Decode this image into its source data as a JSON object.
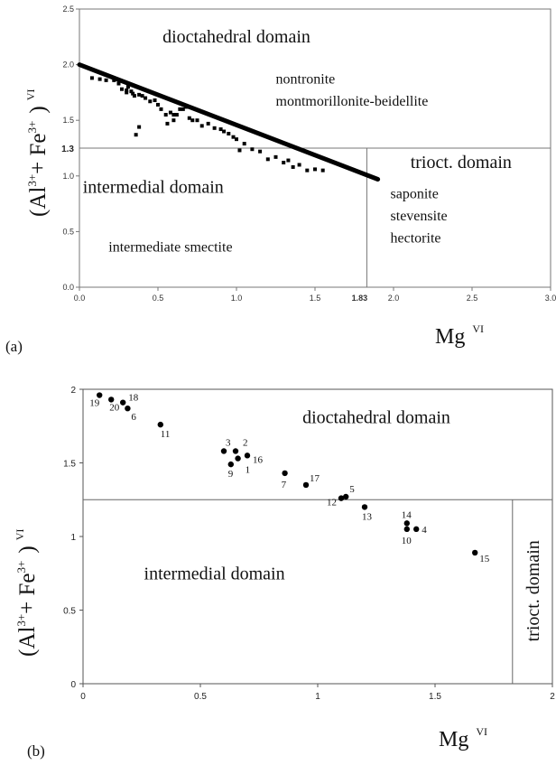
{
  "chart_data": [
    {
      "panel_label": "(a)",
      "type": "scatter",
      "xlabel": "Mg",
      "xlabel_sup": "VI",
      "ylabel_parts": {
        "open": "(Al",
        "al_sup": "3+",
        "plus": "+ Fe",
        "fe_sup": "3+",
        "close": ")",
        "sup": "VI"
      },
      "xlim": [
        0,
        3
      ],
      "ylim": [
        0,
        2.5
      ],
      "x_ticks": [
        "0.0",
        "0.5",
        "1.0",
        "1.5",
        "2.0",
        "2.5",
        "3.0"
      ],
      "y_ticks": [
        "0.0",
        "0.5",
        "1.0",
        "1.5",
        "2.0",
        "2.5"
      ],
      "extra_x_tick": {
        "value": 1.83,
        "label": "1.83"
      },
      "extra_y_tick": {
        "value": 1.25,
        "label": "1.3"
      },
      "boundaries": {
        "y": 1.25,
        "x": 1.83
      },
      "regions": [
        {
          "label": "dioctahedral domain",
          "x": 1.0,
          "y": 2.2
        },
        {
          "label": "intermedial domain",
          "x": 0.47,
          "y": 0.85
        },
        {
          "label": "trioct. domain",
          "x": 2.43,
          "y": 1.07
        }
      ],
      "mineral_labels": [
        {
          "text": "nontronite",
          "x": 1.25,
          "y": 1.83
        },
        {
          "text": "montmorillonite-beidellite",
          "x": 1.25,
          "y": 1.63
        },
        {
          "text": "intermediate smectite",
          "x": 0.58,
          "y": 0.32
        },
        {
          "text": "saponite",
          "x": 1.98,
          "y": 0.8
        },
        {
          "text": "stevensite",
          "x": 1.98,
          "y": 0.6
        },
        {
          "text": "hectorite",
          "x": 1.98,
          "y": 0.4
        }
      ],
      "trend_line": {
        "x": [
          0.0,
          1.9
        ],
        "y": [
          2.0,
          0.97
        ]
      },
      "series": [
        {
          "x": [
            0.08,
            0.13,
            0.17,
            0.22,
            0.25,
            0.27,
            0.3,
            0.3,
            0.31,
            0.33,
            0.34,
            0.35,
            0.36,
            0.38,
            0.38,
            0.4,
            0.42,
            0.45,
            0.48,
            0.5,
            0.52,
            0.55,
            0.56,
            0.58,
            0.6,
            0.6,
            0.62,
            0.64,
            0.66,
            0.68,
            0.7,
            0.72,
            0.75,
            0.78,
            0.82,
            0.86,
            0.9,
            0.92,
            0.95,
            0.98,
            1.0,
            1.02,
            1.05,
            1.1,
            1.15,
            1.2,
            1.25,
            1.3,
            1.33,
            1.36,
            1.4,
            1.45,
            1.5,
            1.55
          ],
          "y": [
            1.88,
            1.87,
            1.86,
            1.86,
            1.83,
            1.78,
            1.77,
            1.75,
            1.8,
            1.76,
            1.74,
            1.72,
            1.37,
            1.44,
            1.73,
            1.72,
            1.7,
            1.67,
            1.68,
            1.64,
            1.6,
            1.55,
            1.47,
            1.57,
            1.55,
            1.5,
            1.55,
            1.6,
            1.6,
            1.62,
            1.52,
            1.5,
            1.5,
            1.45,
            1.47,
            1.43,
            1.42,
            1.4,
            1.38,
            1.35,
            1.33,
            1.23,
            1.29,
            1.24,
            1.22,
            1.15,
            1.17,
            1.12,
            1.14,
            1.08,
            1.1,
            1.05,
            1.06,
            1.05
          ]
        }
      ]
    },
    {
      "panel_label": "(b)",
      "type": "scatter",
      "xlabel": "Mg",
      "xlabel_sup": "VI",
      "ylabel_parts": {
        "open": "(Al",
        "al_sup": "3+",
        "plus": "+ Fe",
        "fe_sup": "3+",
        "close": ")",
        "sup": "VI"
      },
      "xlim": [
        0,
        2
      ],
      "ylim": [
        0,
        2
      ],
      "x_ticks": [
        "0",
        "0.5",
        "1",
        "1.5",
        "2"
      ],
      "y_ticks": [
        "0",
        "0.5",
        "1",
        "1.5",
        "2"
      ],
      "boundaries": {
        "y": 1.25,
        "x": 1.83
      },
      "regions": [
        {
          "label": "dioctahedral domain",
          "x": 1.25,
          "y": 1.77
        },
        {
          "label": "intermedial domain",
          "x": 0.56,
          "y": 0.71
        },
        {
          "label": "trioct. domain",
          "x": 1.915,
          "y": 0.63,
          "rotated": true
        }
      ],
      "points": [
        {
          "label": "19",
          "x": 0.07,
          "y": 1.96
        },
        {
          "label": "20",
          "x": 0.12,
          "y": 1.93
        },
        {
          "label": "18",
          "x": 0.17,
          "y": 1.91
        },
        {
          "label": "6",
          "x": 0.19,
          "y": 1.87
        },
        {
          "label": "11",
          "x": 0.33,
          "y": 1.76
        },
        {
          "label": "3",
          "x": 0.6,
          "y": 1.58
        },
        {
          "label": "2",
          "x": 0.65,
          "y": 1.58
        },
        {
          "label": "16",
          "x": 0.7,
          "y": 1.55
        },
        {
          "label": "9",
          "x": 0.63,
          "y": 1.49
        },
        {
          "label": "1",
          "x": 0.66,
          "y": 1.53
        },
        {
          "label": "7",
          "x": 0.86,
          "y": 1.43
        },
        {
          "label": "17",
          "x": 0.95,
          "y": 1.35
        },
        {
          "label": "12",
          "x": 1.1,
          "y": 1.26
        },
        {
          "label": "5",
          "x": 1.12,
          "y": 1.27
        },
        {
          "label": "13",
          "x": 1.2,
          "y": 1.2
        },
        {
          "label": "14",
          "x": 1.38,
          "y": 1.09
        },
        {
          "label": "10",
          "x": 1.38,
          "y": 1.05
        },
        {
          "label": "4",
          "x": 1.42,
          "y": 1.05
        },
        {
          "label": "15",
          "x": 1.67,
          "y": 0.89
        }
      ]
    }
  ]
}
